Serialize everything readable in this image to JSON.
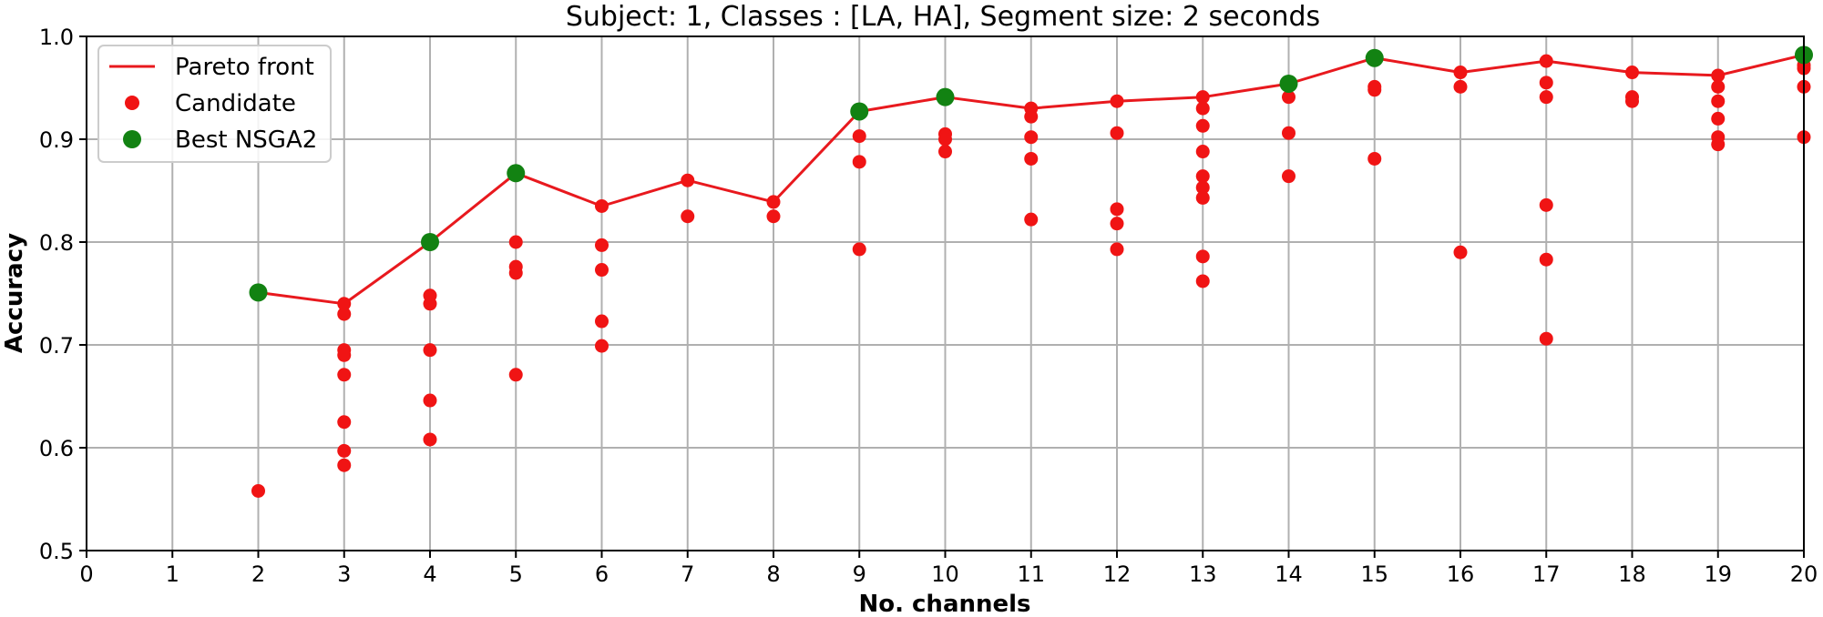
{
  "chart_data": {
    "type": "scatter",
    "title": "Subject: 1, Classes : [LA, HA], Segment size: 2 seconds",
    "xlabel": "No. channels",
    "ylabel": "Accuracy",
    "xlim": [
      0,
      20
    ],
    "ylim": [
      0.5,
      1.0
    ],
    "x_ticks": [
      "0",
      "1",
      "2",
      "3",
      "4",
      "5",
      "6",
      "7",
      "8",
      "9",
      "10",
      "11",
      "12",
      "13",
      "14",
      "15",
      "16",
      "17",
      "18",
      "19",
      "20"
    ],
    "y_ticks": [
      "0.5",
      "0.6",
      "0.7",
      "0.8",
      "0.9",
      "1.0"
    ],
    "grid": true,
    "legend_position": "top-left",
    "colors": {
      "pareto": "#e8191e",
      "candidate": "#f01414",
      "best": "#128212"
    },
    "series": [
      {
        "name": "Pareto front",
        "kind": "line",
        "points": [
          [
            2,
            0.751
          ],
          [
            3,
            0.74
          ],
          [
            4,
            0.8
          ],
          [
            5,
            0.867
          ],
          [
            6,
            0.835
          ],
          [
            7,
            0.86
          ],
          [
            8,
            0.839
          ],
          [
            9,
            0.927
          ],
          [
            10,
            0.941
          ],
          [
            11,
            0.93
          ],
          [
            12,
            0.937
          ],
          [
            13,
            0.941
          ],
          [
            14,
            0.954
          ],
          [
            15,
            0.979
          ],
          [
            16,
            0.965
          ],
          [
            17,
            0.976
          ],
          [
            18,
            0.965
          ],
          [
            19,
            0.962
          ],
          [
            20,
            0.982
          ]
        ]
      },
      {
        "name": "Candidate",
        "kind": "scatter",
        "points": [
          [
            2,
            0.558
          ],
          [
            3,
            0.74
          ],
          [
            3,
            0.73
          ],
          [
            3,
            0.695
          ],
          [
            3,
            0.69
          ],
          [
            3,
            0.671
          ],
          [
            3,
            0.625
          ],
          [
            3,
            0.597
          ],
          [
            3,
            0.583
          ],
          [
            4,
            0.748
          ],
          [
            4,
            0.74
          ],
          [
            4,
            0.695
          ],
          [
            4,
            0.646
          ],
          [
            4,
            0.608
          ],
          [
            5,
            0.8
          ],
          [
            5,
            0.776
          ],
          [
            5,
            0.77
          ],
          [
            5,
            0.671
          ],
          [
            6,
            0.835
          ],
          [
            6,
            0.797
          ],
          [
            6,
            0.773
          ],
          [
            6,
            0.723
          ],
          [
            6,
            0.699
          ],
          [
            7,
            0.86
          ],
          [
            7,
            0.825
          ],
          [
            8,
            0.839
          ],
          [
            8,
            0.825
          ],
          [
            9,
            0.903
          ],
          [
            9,
            0.878
          ],
          [
            9,
            0.793
          ],
          [
            10,
            0.905
          ],
          [
            10,
            0.9
          ],
          [
            10,
            0.888
          ],
          [
            11,
            0.93
          ],
          [
            11,
            0.922
          ],
          [
            11,
            0.902
          ],
          [
            11,
            0.881
          ],
          [
            11,
            0.822
          ],
          [
            12,
            0.937
          ],
          [
            12,
            0.906
          ],
          [
            12,
            0.832
          ],
          [
            12,
            0.818
          ],
          [
            12,
            0.793
          ],
          [
            13,
            0.941
          ],
          [
            13,
            0.93
          ],
          [
            13,
            0.913
          ],
          [
            13,
            0.888
          ],
          [
            13,
            0.864
          ],
          [
            13,
            0.853
          ],
          [
            13,
            0.843
          ],
          [
            13,
            0.786
          ],
          [
            13,
            0.762
          ],
          [
            14,
            0.941
          ],
          [
            14,
            0.906
          ],
          [
            14,
            0.864
          ],
          [
            15,
            0.951
          ],
          [
            15,
            0.948
          ],
          [
            15,
            0.881
          ],
          [
            16,
            0.965
          ],
          [
            16,
            0.951
          ],
          [
            16,
            0.79
          ],
          [
            17,
            0.976
          ],
          [
            17,
            0.955
          ],
          [
            17,
            0.941
          ],
          [
            17,
            0.836
          ],
          [
            17,
            0.783
          ],
          [
            17,
            0.706
          ],
          [
            18,
            0.965
          ],
          [
            18,
            0.941
          ],
          [
            18,
            0.937
          ],
          [
            19,
            0.962
          ],
          [
            19,
            0.951
          ],
          [
            19,
            0.937
          ],
          [
            19,
            0.92
          ],
          [
            19,
            0.902
          ],
          [
            19,
            0.895
          ],
          [
            20,
            0.982
          ],
          [
            20,
            0.972
          ],
          [
            20,
            0.969
          ],
          [
            20,
            0.951
          ],
          [
            20,
            0.902
          ]
        ]
      },
      {
        "name": "Best NSGA2",
        "kind": "scatter",
        "points": [
          [
            2,
            0.751
          ],
          [
            4,
            0.8
          ],
          [
            5,
            0.867
          ],
          [
            9,
            0.927
          ],
          [
            10,
            0.941
          ],
          [
            14,
            0.954
          ],
          [
            15,
            0.979
          ],
          [
            20,
            0.982
          ]
        ]
      }
    ]
  }
}
